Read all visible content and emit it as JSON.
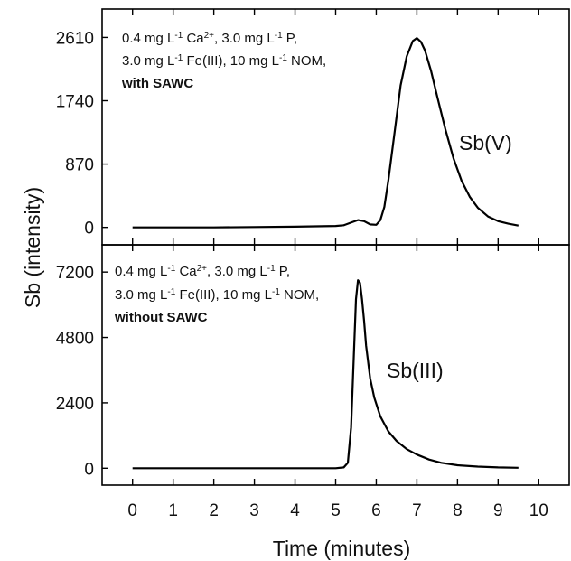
{
  "chart_data": {
    "type": "line",
    "xlabel": "Time (minutes)",
    "ylabel": "Sb (intensity)",
    "x_ticks": [
      "0",
      "1",
      "2",
      "3",
      "4",
      "5",
      "6",
      "7",
      "8",
      "9",
      "10"
    ],
    "xlim": [
      -0.75,
      10.75
    ],
    "panels": [
      {
        "id": "top",
        "ylim": [
          -240,
          3000
        ],
        "y_ticks": [
          0,
          870,
          1740,
          2610
        ],
        "y_tick_labels": [
          "0",
          "870",
          "1740",
          "2610"
        ],
        "annotation_lines": [
          {
            "parts": [
              {
                "t": "0.4 mg L"
              },
              {
                "t": "-1",
                "sup": true
              },
              {
                "t": " Ca"
              },
              {
                "t": "2+",
                "sup": true
              },
              {
                "t": ", 3.0  mg L"
              },
              {
                "t": "-1",
                "sup": true
              },
              {
                "t": " P,"
              }
            ]
          },
          {
            "parts": [
              {
                "t": "3.0 mg L"
              },
              {
                "t": "-1",
                "sup": true
              },
              {
                "t": " Fe(III), 10 mg L"
              },
              {
                "t": "-1",
                "sup": true
              },
              {
                "t": " NOM,"
              }
            ]
          },
          {
            "parts": [
              {
                "t": "with SAWC",
                "bold": true
              }
            ]
          }
        ],
        "series": [
          {
            "name": "Sb(V)",
            "x": [
              0.0,
              1.0,
              2.0,
              3.0,
              4.0,
              5.0,
              5.2,
              5.4,
              5.55,
              5.7,
              5.85,
              6.0,
              6.1,
              6.2,
              6.3,
              6.45,
              6.6,
              6.75,
              6.9,
              7.0,
              7.1,
              7.2,
              7.35,
              7.5,
              7.7,
              7.9,
              8.1,
              8.3,
              8.5,
              8.75,
              9.0,
              9.25,
              9.5
            ],
            "y": [
              0,
              0,
              0,
              5,
              10,
              20,
              30,
              70,
              100,
              85,
              40,
              35,
              100,
              280,
              650,
              1300,
              1950,
              2350,
              2560,
              2600,
              2550,
              2430,
              2150,
              1800,
              1350,
              950,
              640,
              420,
              270,
              150,
              85,
              50,
              25
            ]
          }
        ]
      },
      {
        "id": "bottom",
        "ylim": [
          -620,
          8200
        ],
        "y_ticks": [
          0,
          2400,
          4800,
          7200
        ],
        "y_tick_labels": [
          "0",
          "2400",
          "4800",
          "7200"
        ],
        "annotation_lines": [
          {
            "parts": [
              {
                "t": "0.4 mg L"
              },
              {
                "t": "-1",
                "sup": true
              },
              {
                "t": " Ca"
              },
              {
                "t": "2+",
                "sup": true
              },
              {
                "t": ", 3.0  mg L"
              },
              {
                "t": "-1",
                "sup": true
              },
              {
                "t": " P,"
              }
            ]
          },
          {
            "parts": [
              {
                "t": "3.0 mg L"
              },
              {
                "t": "-1",
                "sup": true
              },
              {
                "t": " Fe(III), 10 mg L"
              },
              {
                "t": "-1",
                "sup": true
              },
              {
                "t": " NOM,"
              }
            ]
          },
          {
            "parts": [
              {
                "t": "without SAWC",
                "bold": true
              }
            ]
          }
        ],
        "series": [
          {
            "name": "Sb(III)",
            "x": [
              0.0,
              1.0,
              2.0,
              3.0,
              4.0,
              5.0,
              5.2,
              5.3,
              5.38,
              5.45,
              5.5,
              5.55,
              5.6,
              5.65,
              5.7,
              5.75,
              5.85,
              5.95,
              6.1,
              6.3,
              6.5,
              6.75,
              7.0,
              7.3,
              7.6,
              8.0,
              8.5,
              9.0,
              9.5
            ],
            "y": [
              0,
              0,
              0,
              0,
              0,
              0,
              30,
              200,
              1500,
              4200,
              6200,
              6900,
              6800,
              6200,
              5400,
              4500,
              3300,
              2600,
              1900,
              1350,
              1000,
              700,
              500,
              320,
              200,
              110,
              60,
              30,
              15
            ]
          }
        ]
      }
    ]
  }
}
